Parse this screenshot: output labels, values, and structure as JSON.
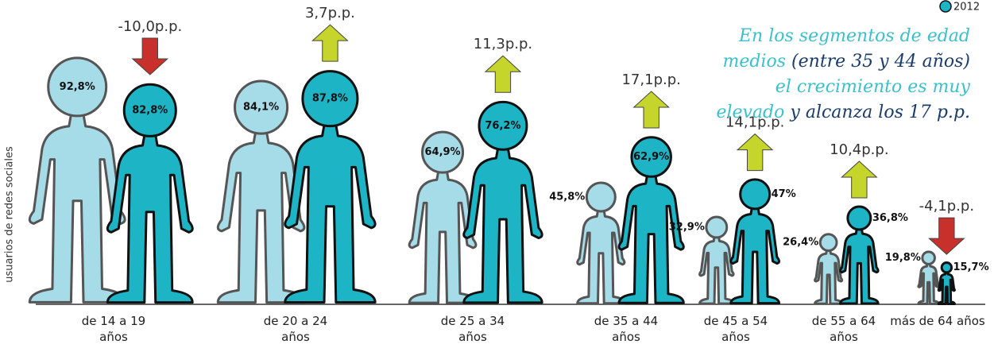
{
  "chart_data": {
    "type": "pictogram",
    "y_label": "usuarios de redes sociales",
    "categories": [
      "de 14 a 19 años",
      "de 20 a 24 años",
      "de 25 a 34 años",
      "de 35 a 44 años",
      "de 45 a 54 años",
      "de 55 a 64 años",
      "más de 64 años"
    ],
    "series": [
      {
        "color": "#a6dbe8",
        "values": [
          92.8,
          84.1,
          64.9,
          45.8,
          32.9,
          26.4,
          19.8
        ],
        "value_labels": [
          "92,8%",
          "84,1%",
          "64,9%",
          "45,8%",
          "32,9%",
          "26,4%",
          "19,8%"
        ]
      },
      {
        "name": "2012",
        "color": "#1db4c6",
        "values": [
          82.8,
          87.8,
          76.2,
          62.9,
          47,
          36.8,
          15.7
        ],
        "value_labels": [
          "82,8%",
          "87,8%",
          "76,2%",
          "62,9%",
          "47%",
          "36,8%",
          "15,7%"
        ]
      }
    ],
    "changes": {
      "values": [
        -10.0,
        3.7,
        11.3,
        17.1,
        14.1,
        10.4,
        -4.1
      ],
      "value_labels": [
        "-10,0p.p.",
        "3,7p.p.",
        "11,3p.p.",
        "17,1p.p.",
        "14,1p.p.",
        "10,4p.p.",
        "-4,1p.p."
      ],
      "up_color": "#c5d52c",
      "down_color": "#c7302b"
    },
    "ylim": [
      0,
      100
    ],
    "annotation": {
      "parts": [
        {
          "text": "En los segmentos de edad medios",
          "color": "#3cc0cc"
        },
        {
          "text": "(entre 35 y 44 años)",
          "color": "#1a3c6b"
        },
        {
          "text": "el crecimiento es muy elevado",
          "color": "#3cc0cc"
        },
        {
          "text": "y",
          "color": "#1a3c6b"
        },
        {
          "text": "alcanza los 17 p.p.",
          "color": "#1a3c6b"
        }
      ]
    }
  }
}
